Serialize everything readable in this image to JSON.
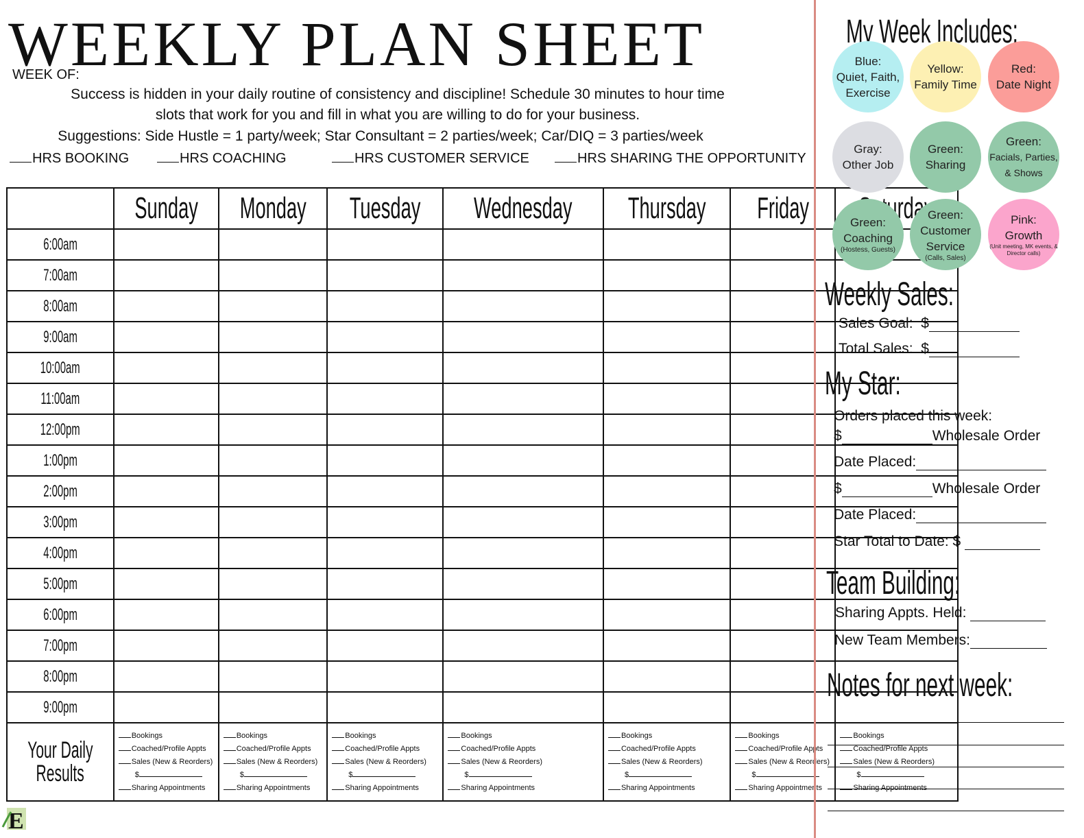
{
  "header": {
    "title": "WEEKLY PLAN SHEET",
    "week_of": "WEEK OF:",
    "intro_line1": "Success is hidden in your daily routine of consistency and discipline! Schedule 30 minutes to hour time",
    "intro_line2": "slots that work for you and fill in what you are willing to do for your business.",
    "suggestions": "Suggestions: Side Hustle = 1 party/week; Star Consultant = 2 parties/week; Car/DIQ = 3 parties/week",
    "hrs": [
      "HRS BOOKING",
      "HRS COACHING",
      "HRS CUSTOMER SERVICE",
      "HRS SHARING THE OPPORTUNITY"
    ]
  },
  "days": [
    "Sunday",
    "Monday",
    "Tuesday",
    "Wednesday",
    "Thursday",
    "Friday",
    "Saturday"
  ],
  "times": [
    "6:00am",
    "7:00am",
    "8:00am",
    "9:00am",
    "10:00am",
    "11:00am",
    "12:00pm",
    "1:00pm",
    "2:00pm",
    "3:00pm",
    "4:00pm",
    "5:00pm",
    "6:00pm",
    "7:00pm",
    "8:00pm",
    "9:00pm"
  ],
  "results": {
    "label_line1": "Your Daily",
    "label_line2": "Results",
    "items": [
      "Bookings",
      "Coached/Profile Appts",
      "Sales (New & Reorders)"
    ],
    "dollar": "$",
    "last": "Sharing Appointments"
  },
  "week_includes": {
    "heading": "My Week Includes:",
    "circles": [
      {
        "l1": "Blue:",
        "l2": "Quiet, Faith,",
        "l3": "Exercise",
        "note": "",
        "color": "#b5eef1"
      },
      {
        "l1": "Yellow:",
        "l2": "Family Time",
        "l3": "",
        "note": "",
        "color": "#fdf0b3"
      },
      {
        "l1": "Red:",
        "l2": "Date Night",
        "l3": "",
        "note": "",
        "color": "#fb9d99"
      },
      {
        "l1": "Gray:",
        "l2": "Other Job",
        "l3": "",
        "note": "",
        "color": "#dcdde2"
      },
      {
        "l1": "Green:",
        "l2": "Sharing",
        "l3": "",
        "note": "",
        "color": "#93c9a9"
      },
      {
        "l1": "Green:",
        "l2": "Facials, Parties,",
        "l3": "& Shows",
        "note": "",
        "color": "#93c9a9"
      },
      {
        "l1": "Green:",
        "l2": "Coaching",
        "l3": "",
        "note": "(Hostess, Guests)",
        "color": "#93c9a9"
      },
      {
        "l1": "Green:",
        "l2": "Customer",
        "l3": "Service",
        "note": "(Calls, Sales)",
        "color": "#93c9a9"
      },
      {
        "l1": "Pink:",
        "l2": "Growth",
        "l3": "",
        "note": "(Unit meeting, MK events, & Director calls)",
        "color": "#fba5cc"
      }
    ]
  },
  "weekly_sales": {
    "heading": "Weekly Sales:",
    "goal": "Sales Goal:",
    "total": "Total Sales:",
    "dollar": "$"
  },
  "my_star": {
    "heading": "My Star:",
    "orders": "Orders placed this week:",
    "dollar": "$",
    "wholesale": "Wholesale Order",
    "date_placed": "Date Placed:",
    "star_total": "Star Total to Date: $"
  },
  "team_building": {
    "heading": "Team Building:",
    "sharing": "Sharing Appts. Held:",
    "new_members": "New Team Members:"
  },
  "notes": {
    "heading": "Notes for next week:"
  },
  "colors": {
    "divider": "#d98b82"
  }
}
